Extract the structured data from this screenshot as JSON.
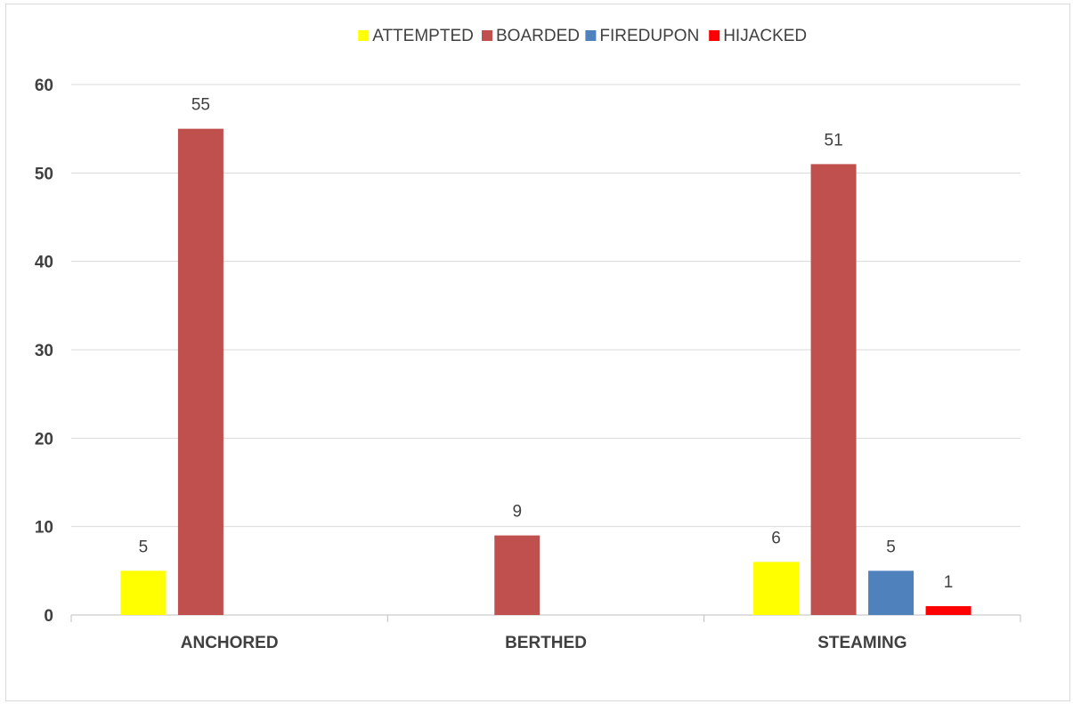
{
  "chart_data": {
    "type": "bar",
    "categories": [
      "ANCHORED",
      "BERTHED",
      "STEAMING"
    ],
    "series": [
      {
        "name": "ATTEMPTED",
        "color": "#ffff00",
        "values": [
          5,
          null,
          6
        ]
      },
      {
        "name": "BOARDED",
        "color": "#c0504d",
        "values": [
          55,
          9,
          51
        ]
      },
      {
        "name": "FIREDUPON",
        "color": "#4f81bd",
        "values": [
          null,
          null,
          5
        ]
      },
      {
        "name": "HIJACKED",
        "color": "#ff0000",
        "values": [
          null,
          null,
          1
        ]
      }
    ],
    "ylim": [
      0,
      60
    ],
    "yticks": [
      0,
      10,
      20,
      30,
      40,
      50,
      60
    ],
    "grid": true,
    "legend_position": "top",
    "data_labels": true
  }
}
